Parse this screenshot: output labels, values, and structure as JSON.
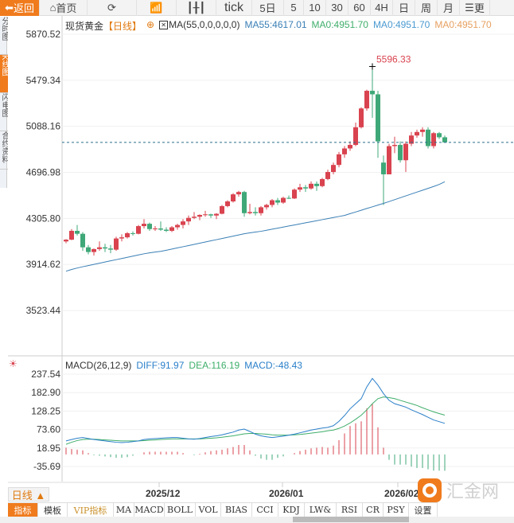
{
  "toolbar": {
    "back": "返回",
    "home": "首页",
    "items": [
      "tick",
      "5日",
      "5",
      "10",
      "30",
      "60",
      "4H",
      "日",
      "周",
      "月"
    ],
    "more": "更"
  },
  "side_tabs": [
    "分时图",
    "K线图",
    "闪电图",
    "合约资料"
  ],
  "legend": {
    "symbol": "现货黄金",
    "period": "【日线】",
    "ma_name": "MA(55,0,0,0,0,0)",
    "ma55": "MA55:4617.01",
    "ma0a": "MA0:4951.70",
    "ma0b": "MA0:4951.70",
    "ma0c": "MA0:4951.70"
  },
  "macd_legend": {
    "name": "MACD(26,12,9)",
    "diff": "DIFF:91.97",
    "dea": "DEA:116.19",
    "macd": "MACD:-48.43"
  },
  "period_button": "日线 ▲",
  "dates": [
    "2025/12",
    "2026/01",
    "2026/02"
  ],
  "tabs": [
    "指标",
    "模板",
    "VIP指标",
    "MA",
    "MACD",
    "BOLL",
    "VOL",
    "BIAS",
    "CCI",
    "KDJ",
    "LW&",
    "RSI",
    "CR",
    "PSY",
    "设置"
  ],
  "logo_text": "汇金网",
  "colors": {
    "up": "#d9434f",
    "down": "#3fa878",
    "ma55": "#3a7fb5",
    "accent": "#f07b1d",
    "diff": "#2a7fc9",
    "dea": "#3fae6a"
  },
  "chart_data": [
    {
      "type": "candlestick",
      "ylim": [
        3400,
        5950
      ],
      "yticks": [
        "5870.52",
        "5479.34",
        "5088.16",
        "4696.98",
        "4305.80",
        "3914.62",
        "3523.44"
      ],
      "high_label": "5596.33",
      "last_price": 4951.7,
      "ohlc": [
        [
          4110,
          4130,
          4095,
          4125
        ],
        [
          4125,
          4215,
          4120,
          4200
        ],
        [
          4200,
          4250,
          4160,
          4175
        ],
        [
          4175,
          4190,
          4030,
          4060
        ],
        [
          4060,
          4080,
          4000,
          4020
        ],
        [
          4020,
          4050,
          3990,
          4045
        ],
        [
          4045,
          4110,
          4030,
          4060
        ],
        [
          4060,
          4090,
          4020,
          4050
        ],
        [
          4050,
          4080,
          4010,
          4040
        ],
        [
          4040,
          4150,
          4030,
          4135
        ],
        [
          4135,
          4170,
          4110,
          4145
        ],
        [
          4145,
          4190,
          4135,
          4180
        ],
        [
          4180,
          4195,
          4160,
          4175
        ],
        [
          4175,
          4250,
          4170,
          4240
        ],
        [
          4240,
          4300,
          4220,
          4260
        ],
        [
          4260,
          4270,
          4200,
          4215
        ],
        [
          4215,
          4240,
          4200,
          4220
        ],
        [
          4220,
          4280,
          4200,
          4210
        ],
        [
          4210,
          4230,
          4190,
          4200
        ],
        [
          4200,
          4240,
          4190,
          4230
        ],
        [
          4230,
          4260,
          4210,
          4250
        ],
        [
          4250,
          4300,
          4220,
          4280
        ],
        [
          4280,
          4330,
          4250,
          4310
        ],
        [
          4310,
          4360,
          4300,
          4320
        ],
        [
          4320,
          4340,
          4290,
          4335
        ],
        [
          4335,
          4370,
          4320,
          4340
        ],
        [
          4340,
          4345,
          4310,
          4330
        ],
        [
          4330,
          4350,
          4300,
          4345
        ],
        [
          4345,
          4420,
          4340,
          4410
        ],
        [
          4410,
          4460,
          4400,
          4450
        ],
        [
          4450,
          4520,
          4440,
          4510
        ],
        [
          4510,
          4540,
          4490,
          4530
        ],
        [
          4530,
          4540,
          4320,
          4350
        ],
        [
          4350,
          4430,
          4340,
          4360
        ],
        [
          4360,
          4400,
          4330,
          4350
        ],
        [
          4350,
          4410,
          4330,
          4400
        ],
        [
          4400,
          4430,
          4380,
          4420
        ],
        [
          4420,
          4470,
          4400,
          4460
        ],
        [
          4460,
          4480,
          4420,
          4440
        ],
        [
          4440,
          4490,
          4430,
          4480
        ],
        [
          4480,
          4500,
          4470,
          4475
        ],
        [
          4475,
          4560,
          4470,
          4550
        ],
        [
          4550,
          4600,
          4530,
          4570
        ],
        [
          4570,
          4590,
          4530,
          4560
        ],
        [
          4560,
          4620,
          4550,
          4600
        ],
        [
          4600,
          4620,
          4540,
          4580
        ],
        [
          4580,
          4650,
          4570,
          4640
        ],
        [
          4640,
          4720,
          4630,
          4700
        ],
        [
          4700,
          4780,
          4680,
          4760
        ],
        [
          4760,
          4870,
          4740,
          4850
        ],
        [
          4850,
          4920,
          4820,
          4900
        ],
        [
          4900,
          4960,
          4880,
          4930
        ],
        [
          4930,
          5120,
          4920,
          5080
        ],
        [
          5080,
          5250,
          5070,
          5240
        ],
        [
          5240,
          5400,
          5220,
          5390
        ],
        [
          5390,
          5596.33,
          5160,
          5360
        ],
        [
          5360,
          5390,
          4820,
          4960
        ],
        [
          4780,
          4840,
          4420,
          4680
        ],
        [
          4680,
          4940,
          4680,
          4920
        ],
        [
          4920,
          5000,
          4860,
          4930
        ],
        [
          4930,
          4960,
          4780,
          4800
        ],
        [
          4800,
          4960,
          4700,
          4940
        ],
        [
          4940,
          5040,
          4920,
          5010
        ],
        [
          5010,
          5060,
          4990,
          5040
        ],
        [
          5040,
          5080,
          5000,
          5060
        ],
        [
          5060,
          5080,
          4900,
          4920
        ],
        [
          4920,
          5040,
          4900,
          5030
        ],
        [
          5030,
          5040,
          4980,
          4995
        ],
        [
          4995,
          5010,
          4950,
          4951.7
        ]
      ],
      "ma55": [
        3857,
        3872,
        3884,
        3895,
        3905,
        3915,
        3925,
        3935,
        3945,
        3955,
        3965,
        3975,
        3985,
        3995,
        4005,
        4013,
        4020,
        4026,
        4035,
        4045,
        4055,
        4065,
        4075,
        4085,
        4095,
        4105,
        4115,
        4125,
        4135,
        4145,
        4155,
        4165,
        4175,
        4183,
        4190,
        4196,
        4205,
        4214,
        4223,
        4232,
        4241,
        4250,
        4259,
        4268,
        4277,
        4286,
        4295,
        4304,
        4313,
        4322,
        4331,
        4346,
        4360,
        4375,
        4390,
        4404,
        4419,
        4433,
        4449,
        4465,
        4481,
        4497,
        4513,
        4529,
        4545,
        4561,
        4577,
        4594,
        4617.01
      ]
    },
    {
      "type": "macd",
      "ylim": [
        -70,
        255
      ],
      "yticks": [
        "237.54",
        "182.90",
        "128.25",
        "73.60",
        "18.95",
        "-35.69"
      ],
      "diff": [
        40,
        44,
        48,
        50,
        47,
        44,
        42,
        40,
        38,
        36,
        35,
        36,
        38,
        40,
        44,
        46,
        47,
        48,
        49,
        50,
        50,
        48,
        46,
        45,
        47,
        50,
        53,
        55,
        58,
        62,
        66,
        72,
        75,
        68,
        60,
        55,
        52,
        50,
        52,
        54,
        57,
        60,
        64,
        68,
        72,
        75,
        78,
        80,
        85,
        98,
        115,
        135,
        150,
        165,
        200,
        225,
        205,
        180,
        160,
        150,
        145,
        140,
        132,
        125,
        118,
        110,
        102,
        97,
        91.97
      ],
      "dea": [
        30,
        36,
        41,
        44,
        45,
        45,
        44,
        43,
        42,
        41,
        40,
        40,
        40,
        40,
        41,
        42,
        43,
        44,
        45,
        46,
        46,
        46,
        46,
        46,
        46,
        47,
        48,
        49,
        51,
        53,
        55,
        58,
        61,
        62,
        62,
        61,
        60,
        58,
        57,
        57,
        57,
        58,
        59,
        61,
        63,
        65,
        67,
        70,
        72,
        77,
        84,
        93,
        104,
        116,
        132,
        150,
        165,
        170,
        168,
        165,
        160,
        155,
        150,
        145,
        138,
        132,
        126,
        121,
        116.19
      ],
      "macd": [
        20,
        16,
        14,
        12,
        4,
        -2,
        -4,
        -6,
        -8,
        -10,
        -10,
        -8,
        -4,
        0,
        6,
        8,
        8,
        8,
        8,
        8,
        8,
        4,
        0,
        -2,
        2,
        6,
        10,
        12,
        14,
        18,
        22,
        28,
        28,
        12,
        -4,
        -12,
        -16,
        -16,
        -10,
        -6,
        0,
        4,
        10,
        14,
        18,
        20,
        22,
        20,
        26,
        42,
        62,
        84,
        92,
        98,
        136,
        150,
        80,
        20,
        -16,
        -30,
        -30,
        -30,
        -36,
        -40,
        -40,
        -44,
        -48,
        -48,
        -48.43
      ]
    }
  ]
}
